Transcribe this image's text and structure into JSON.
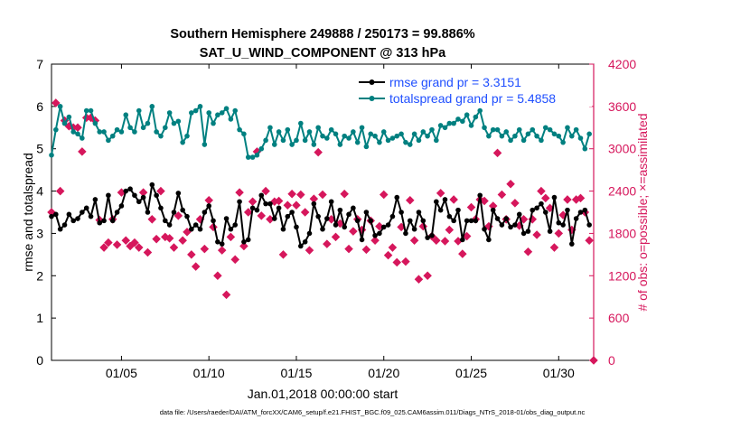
{
  "chart_data": {
    "type": "line",
    "title": "Southern Hemisphere 249888 / 250173 = 99.886%",
    "subtitle": "SAT_U_WIND_COMPONENT @ 313 hPa",
    "xlabel": "Jan.01,2018 00:00:00 start",
    "ylabel_left": "rmse and totalspread",
    "ylabel_right": "# of obs: o=possible; ×=assimilated",
    "footnote": "data file: /Users/raeder/DAI/ATM_forcXX/CAM6_setup/f.e21.FHIST_BGC.f09_025.CAM6assim.011/Diags_NTrS_2018-01/obs_diag_output.nc",
    "xlim": [
      1,
      32
    ],
    "ylim_left": [
      0,
      7
    ],
    "ylim_right": [
      0,
      4200
    ],
    "x_ticks": [
      5,
      10,
      15,
      20,
      25,
      30
    ],
    "x_tick_labels": [
      "01/05",
      "01/10",
      "01/15",
      "01/20",
      "01/25",
      "01/30"
    ],
    "y_left_ticks": [
      0,
      1,
      2,
      3,
      4,
      5,
      6,
      7
    ],
    "y_left_tick_labels": [
      "0",
      "1",
      "2",
      "3",
      "4",
      "5",
      "6",
      "7"
    ],
    "y_right_ticks": [
      0,
      600,
      1200,
      1800,
      2400,
      3000,
      3600,
      4200
    ],
    "y_right_tick_labels": [
      "0",
      "600",
      "1200",
      "1800",
      "2400",
      "3000",
      "3600",
      "4200"
    ],
    "legend_position": "top-right",
    "legend": [
      "rmse grand pr = 3.3151",
      "totalspread grand pr = 5.4858"
    ],
    "colors": {
      "rmse": "#000000",
      "spread": "#008080",
      "obs": "#d6175c"
    },
    "series": [
      {
        "name": "rmse",
        "x": [
          1.0,
          1.25,
          1.5,
          1.75,
          2.0,
          2.25,
          2.5,
          2.75,
          3.0,
          3.25,
          3.5,
          3.75,
          4.0,
          4.25,
          4.5,
          4.75,
          5.0,
          5.25,
          5.5,
          5.75,
          6.0,
          6.25,
          6.5,
          6.75,
          7.0,
          7.25,
          7.5,
          7.75,
          8.0,
          8.25,
          8.5,
          8.75,
          9.0,
          9.25,
          9.5,
          9.75,
          10.0,
          10.25,
          10.5,
          10.75,
          11.0,
          11.25,
          11.5,
          11.75,
          12.0,
          12.25,
          12.5,
          12.75,
          13.0,
          13.25,
          13.5,
          13.75,
          14.0,
          14.25,
          14.5,
          14.75,
          15.0,
          15.25,
          15.5,
          15.75,
          16.0,
          16.25,
          16.5,
          16.75,
          17.0,
          17.25,
          17.5,
          17.75,
          18.0,
          18.25,
          18.5,
          18.75,
          19.0,
          19.25,
          19.5,
          19.75,
          20.0,
          20.25,
          20.5,
          20.75,
          21.0,
          21.25,
          21.5,
          21.75,
          22.0,
          22.25,
          22.5,
          22.75,
          23.0,
          23.25,
          23.5,
          23.75,
          24.0,
          24.25,
          24.5,
          24.75,
          25.0,
          25.25,
          25.5,
          25.75,
          26.0,
          26.25,
          26.5,
          26.75,
          27.0,
          27.25,
          27.5,
          27.75,
          28.0,
          28.25,
          28.5,
          28.75,
          29.0,
          29.25,
          29.5,
          29.75,
          30.0,
          30.25,
          30.5,
          30.75,
          31.0,
          31.25,
          31.5,
          31.75
        ],
        "y": [
          3.4,
          3.45,
          3.1,
          3.2,
          3.45,
          3.3,
          3.35,
          3.5,
          3.6,
          3.4,
          3.8,
          3.25,
          3.3,
          3.9,
          3.3,
          3.5,
          3.65,
          4.0,
          4.05,
          3.9,
          3.75,
          3.85,
          3.5,
          4.15,
          3.9,
          3.6,
          3.3,
          3.2,
          3.5,
          3.95,
          3.55,
          3.4,
          3.1,
          3.2,
          3.1,
          3.5,
          3.65,
          3.3,
          2.8,
          2.75,
          3.35,
          3.1,
          3.2,
          3.75,
          2.8,
          2.85,
          3.6,
          3.55,
          3.9,
          3.7,
          3.7,
          3.35,
          3.6,
          3.1,
          3.4,
          3.5,
          3.15,
          2.7,
          2.8,
          3.0,
          3.7,
          3.4,
          3.1,
          3.35,
          3.75,
          3.2,
          3.55,
          3.15,
          3.45,
          3.6,
          3.3,
          2.85,
          3.5,
          3.3,
          2.95,
          3.0,
          3.15,
          3.2,
          3.4,
          3.85,
          3.5,
          3.0,
          3.3,
          3.1,
          3.5,
          3.3,
          2.9,
          2.95,
          3.75,
          3.55,
          3.8,
          3.4,
          3.3,
          3.55,
          2.85,
          3.3,
          3.3,
          3.3,
          3.9,
          3.1,
          2.85,
          3.55,
          3.35,
          3.2,
          3.35,
          3.15,
          3.2,
          3.45,
          3.0,
          3.05,
          3.55,
          3.6,
          3.7,
          3.5,
          3.05,
          3.85,
          3.25,
          3.2,
          3.55,
          2.75,
          3.35,
          3.5,
          3.55,
          3.2
        ],
        "legend_label": "rmse grand pr = 3.3151"
      },
      {
        "name": "totalspread",
        "x": [
          1.0,
          1.25,
          1.5,
          1.75,
          2.0,
          2.25,
          2.5,
          2.75,
          3.0,
          3.25,
          3.5,
          3.75,
          4.0,
          4.25,
          4.5,
          4.75,
          5.0,
          5.25,
          5.5,
          5.75,
          6.0,
          6.25,
          6.5,
          6.75,
          7.0,
          7.25,
          7.5,
          7.75,
          8.0,
          8.25,
          8.5,
          8.75,
          9.0,
          9.25,
          9.5,
          9.75,
          10.0,
          10.25,
          10.5,
          10.75,
          11.0,
          11.25,
          11.5,
          11.75,
          12.0,
          12.25,
          12.5,
          12.75,
          13.0,
          13.25,
          13.5,
          13.75,
          14.0,
          14.25,
          14.5,
          14.75,
          15.0,
          15.25,
          15.5,
          15.75,
          16.0,
          16.25,
          16.5,
          16.75,
          17.0,
          17.25,
          17.5,
          17.75,
          18.0,
          18.25,
          18.5,
          18.75,
          19.0,
          19.25,
          19.5,
          19.75,
          20.0,
          20.25,
          20.5,
          20.75,
          21.0,
          21.25,
          21.5,
          21.75,
          22.0,
          22.25,
          22.5,
          22.75,
          23.0,
          23.25,
          23.5,
          23.75,
          24.0,
          24.25,
          24.5,
          24.75,
          25.0,
          25.25,
          25.5,
          25.75,
          26.0,
          26.25,
          26.5,
          26.75,
          27.0,
          27.25,
          27.5,
          27.75,
          28.0,
          28.25,
          28.5,
          28.75,
          29.0,
          29.25,
          29.5,
          29.75,
          30.0,
          30.25,
          30.5,
          30.75,
          31.0,
          31.25,
          31.5,
          31.75
        ],
        "y": [
          4.85,
          5.45,
          6.0,
          5.6,
          5.75,
          5.4,
          5.35,
          5.25,
          5.9,
          5.9,
          5.6,
          5.4,
          5.4,
          5.2,
          5.3,
          5.45,
          5.4,
          5.8,
          5.5,
          5.4,
          5.9,
          5.5,
          5.6,
          6.0,
          5.4,
          5.3,
          5.5,
          5.85,
          5.6,
          5.65,
          5.15,
          5.3,
          5.85,
          5.9,
          6.0,
          5.1,
          5.85,
          5.6,
          5.8,
          5.85,
          5.95,
          5.7,
          5.9,
          5.45,
          5.35,
          4.8,
          4.8,
          4.85,
          5.0,
          5.2,
          5.5,
          5.1,
          5.4,
          5.2,
          5.45,
          5.1,
          5.2,
          5.6,
          5.2,
          5.4,
          5.1,
          5.5,
          5.3,
          5.25,
          5.45,
          5.35,
          5.1,
          5.3,
          5.25,
          5.4,
          5.15,
          5.5,
          5.05,
          5.35,
          5.3,
          5.15,
          5.4,
          5.2,
          5.25,
          5.3,
          5.35,
          5.15,
          5.1,
          5.35,
          5.2,
          5.4,
          5.3,
          5.45,
          5.2,
          5.55,
          5.5,
          5.6,
          5.6,
          5.7,
          5.65,
          5.8,
          5.55,
          5.75,
          5.9,
          5.5,
          5.3,
          5.45,
          5.45,
          5.3,
          5.4,
          5.2,
          5.3,
          5.45,
          5.2,
          5.35,
          5.45,
          5.3,
          5.2,
          5.5,
          5.45,
          5.35,
          5.3,
          5.15,
          5.5,
          5.3,
          5.45,
          5.25,
          5.0,
          5.35
        ],
        "legend_label": "totalspread grand pr = 5.4858"
      },
      {
        "name": "obs assimilated",
        "marker": "x",
        "x": [
          1.0,
          1.25,
          1.5,
          1.75,
          2.0,
          2.25,
          2.5,
          2.75,
          3.0,
          3.25,
          3.5,
          3.75,
          4.0,
          4.25,
          4.5,
          4.75,
          5.0,
          5.25,
          5.5,
          5.75,
          6.0,
          6.25,
          6.5,
          6.75,
          7.0,
          7.25,
          7.5,
          7.75,
          8.0,
          8.25,
          8.5,
          8.75,
          9.0,
          9.25,
          9.5,
          9.75,
          10.0,
          10.25,
          10.5,
          10.75,
          11.0,
          11.25,
          11.5,
          11.75,
          12.0,
          12.25,
          12.5,
          12.75,
          13.0,
          13.25,
          13.5,
          13.75,
          14.0,
          14.25,
          14.5,
          14.75,
          15.0,
          15.25,
          15.5,
          15.75,
          16.0,
          16.25,
          16.5,
          16.75,
          17.0,
          17.25,
          17.5,
          17.75,
          18.0,
          18.25,
          18.5,
          18.75,
          19.0,
          19.25,
          19.5,
          19.75,
          20.0,
          20.25,
          20.5,
          20.75,
          21.0,
          21.25,
          21.5,
          21.75,
          22.0,
          22.25,
          22.5,
          22.75,
          23.0,
          23.25,
          23.5,
          23.75,
          24.0,
          24.25,
          24.5,
          24.75,
          25.0,
          25.25,
          25.5,
          25.75,
          26.0,
          26.25,
          26.5,
          26.75,
          27.0,
          27.25,
          27.5,
          27.75,
          28.0,
          28.25,
          28.5,
          28.75,
          29.0,
          29.25,
          29.5,
          29.75,
          30.0,
          30.25,
          30.5,
          30.75,
          31.0,
          31.25,
          31.5,
          31.75
        ],
        "y": [
          2100,
          3650,
          2400,
          3400,
          3320,
          3300,
          3300,
          2960,
          3440,
          3440,
          3400,
          1990,
          1600,
          1670,
          2000,
          1640,
          2380,
          1700,
          1620,
          1670,
          1600,
          2380,
          1530,
          2000,
          1720,
          2400,
          1750,
          1730,
          1600,
          2050,
          1700,
          1820,
          1500,
          1330,
          2000,
          1580,
          2270,
          1890,
          1200,
          1560,
          930,
          1750,
          1430,
          2380,
          1620,
          2100,
          2250,
          2960,
          2050,
          2400,
          2000,
          2250,
          2260,
          1500,
          2200,
          2360,
          2200,
          2350,
          2100,
          1560,
          2290,
          2950,
          2350,
          1650,
          2000,
          1750,
          1940,
          2360,
          1580,
          1830,
          2000,
          1850,
          1570,
          1980,
          1700,
          1900,
          2350,
          1490,
          1600,
          1390,
          1890,
          1400,
          2270,
          1700,
          1150,
          1900,
          1200,
          1760,
          1700,
          2370,
          1690,
          1850,
          2280,
          1690,
          1510,
          1760,
          2170,
          2000,
          2280,
          2260,
          1900,
          2190,
          2940,
          2350,
          2000,
          2500,
          2230,
          1910,
          2000,
          1540,
          2000,
          1780,
          2400,
          2300,
          2160,
          1600,
          1800,
          2060,
          2280,
          1850,
          2280,
          2300,
          2100,
          1700
        ]
      }
    ]
  }
}
